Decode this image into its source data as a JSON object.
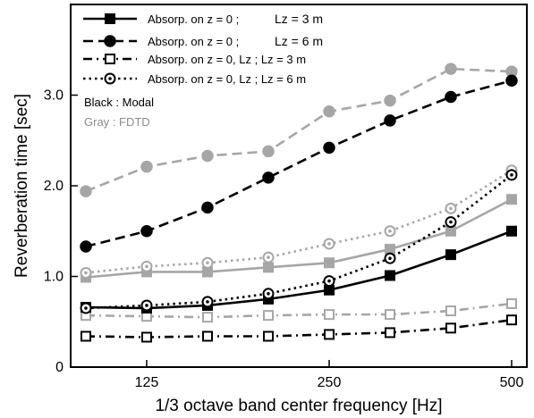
{
  "chart_data": {
    "type": "line",
    "xlabel": "1/3 octave band center frequency [Hz]",
    "ylabel": "Reverberation time [sec]",
    "x_ticks": [
      {
        "index": 1,
        "label": "125"
      },
      {
        "index": 4,
        "label": "250"
      },
      {
        "index": 7,
        "label": "500"
      }
    ],
    "y_ticks": [
      {
        "value": 0,
        "label": "0"
      },
      {
        "value": 1,
        "label": "1.0"
      },
      {
        "value": 2,
        "label": "2.0"
      },
      {
        "value": 3,
        "label": "3.0"
      }
    ],
    "xlim": [
      -0.25,
      7.25
    ],
    "ylim": [
      0,
      4.0
    ],
    "grid": false,
    "legend_position": "top-left",
    "legend": [
      {
        "text": "Absorp. on z = 0 ;",
        "lz": "Lz = 3 m",
        "linestyle": "solid",
        "marker": "square-filled"
      },
      {
        "text": "Absorp. on z = 0 ;",
        "lz": "Lz = 6 m",
        "linestyle": "dashed",
        "marker": "circle-filled"
      },
      {
        "text": "Absorp. on z = 0, Lz ; Lz = 3 m",
        "lz": "",
        "linestyle": "dashdot",
        "marker": "square-open"
      },
      {
        "text": "Absorp. on z = 0, Lz ; Lz = 6 m",
        "lz": "",
        "linestyle": "dotted",
        "marker": "circle-open"
      }
    ],
    "notes": [
      {
        "text": "Black : Modal",
        "color": "#000000"
      },
      {
        "text": "Gray : FDTD",
        "color": "#8c8c8c"
      }
    ],
    "colors": {
      "modal": "#000000",
      "fdtd": "#a6a6a6"
    },
    "series": [
      {
        "method": "Modal",
        "legend_index": 0,
        "linestyle": "solid",
        "marker": "square-filled",
        "color": "#000000",
        "values": [
          0.66,
          0.65,
          0.68,
          0.75,
          0.85,
          1.01,
          1.24,
          1.5
        ]
      },
      {
        "method": "Modal",
        "legend_index": 1,
        "linestyle": "dashed",
        "marker": "circle-filled",
        "color": "#000000",
        "values": [
          1.33,
          1.5,
          1.76,
          2.09,
          2.42,
          2.72,
          2.98,
          3.16
        ]
      },
      {
        "method": "Modal",
        "legend_index": 2,
        "linestyle": "dashdot",
        "marker": "square-open",
        "color": "#000000",
        "values": [
          0.34,
          0.33,
          0.34,
          0.34,
          0.36,
          0.38,
          0.43,
          0.52
        ]
      },
      {
        "method": "Modal",
        "legend_index": 3,
        "linestyle": "dotted",
        "marker": "circle-open",
        "color": "#000000",
        "values": [
          0.65,
          0.68,
          0.72,
          0.81,
          0.95,
          1.2,
          1.6,
          2.12
        ]
      },
      {
        "method": "FDTD",
        "legend_index": 0,
        "linestyle": "solid",
        "marker": "square-filled",
        "color": "#a6a6a6",
        "values": [
          0.99,
          1.05,
          1.05,
          1.1,
          1.15,
          1.3,
          1.5,
          1.85
        ]
      },
      {
        "method": "FDTD",
        "legend_index": 1,
        "linestyle": "dashed",
        "marker": "circle-filled",
        "color": "#a6a6a6",
        "values": [
          1.94,
          2.21,
          2.33,
          2.38,
          2.82,
          2.94,
          3.29,
          3.26
        ]
      },
      {
        "method": "FDTD",
        "legend_index": 2,
        "linestyle": "dashdot",
        "marker": "square-open",
        "color": "#a6a6a6",
        "values": [
          0.57,
          0.56,
          0.55,
          0.57,
          0.58,
          0.58,
          0.62,
          0.7
        ]
      },
      {
        "method": "FDTD",
        "legend_index": 3,
        "linestyle": "dotted",
        "marker": "circle-open",
        "color": "#a6a6a6",
        "values": [
          1.04,
          1.11,
          1.15,
          1.21,
          1.36,
          1.5,
          1.75,
          2.17
        ]
      }
    ]
  }
}
